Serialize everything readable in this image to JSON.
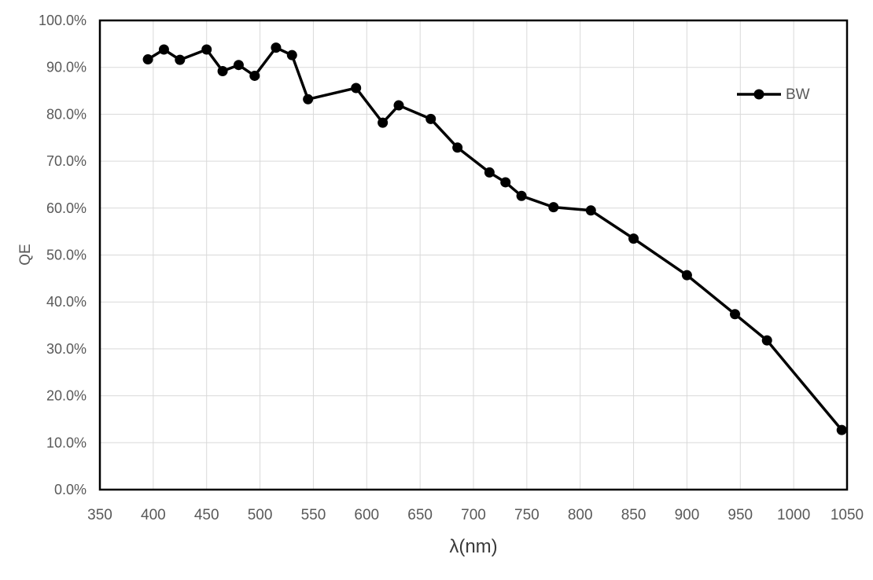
{
  "chart_data": {
    "type": "line",
    "title": "",
    "xlabel": "λ(nm)",
    "ylabel": "QE",
    "xlim": [
      350,
      1050
    ],
    "ylim": [
      0,
      100
    ],
    "x_ticks": [
      350,
      400,
      450,
      500,
      550,
      600,
      650,
      700,
      750,
      800,
      850,
      900,
      950,
      1000,
      1050
    ],
    "y_ticks": [
      "0.0%",
      "10.0%",
      "20.0%",
      "30.0%",
      "40.0%",
      "50.0%",
      "60.0%",
      "70.0%",
      "80.0%",
      "90.0%",
      "100.0%"
    ],
    "y_tick_values": [
      0,
      10,
      20,
      30,
      40,
      50,
      60,
      70,
      80,
      90,
      100
    ],
    "grid": true,
    "legend_position": "inside-top-right",
    "series": [
      {
        "name": "BW",
        "color": "#000000",
        "marker": "circle",
        "x": [
          395,
          410,
          425,
          450,
          465,
          480,
          495,
          515,
          530,
          545,
          590,
          615,
          630,
          660,
          685,
          715,
          730,
          745,
          775,
          810,
          850,
          900,
          945,
          975,
          1045
        ],
        "y": [
          91.7,
          93.8,
          91.6,
          93.8,
          89.2,
          90.5,
          88.2,
          94.2,
          92.6,
          83.2,
          85.6,
          78.2,
          81.9,
          79.0,
          72.9,
          67.6,
          65.5,
          62.6,
          60.2,
          59.5,
          53.5,
          45.7,
          37.4,
          31.8,
          12.7
        ]
      }
    ],
    "colors": {
      "text": "#595959",
      "gridline": "#d9d9d9",
      "border": "#000000",
      "background": "#ffffff"
    }
  }
}
